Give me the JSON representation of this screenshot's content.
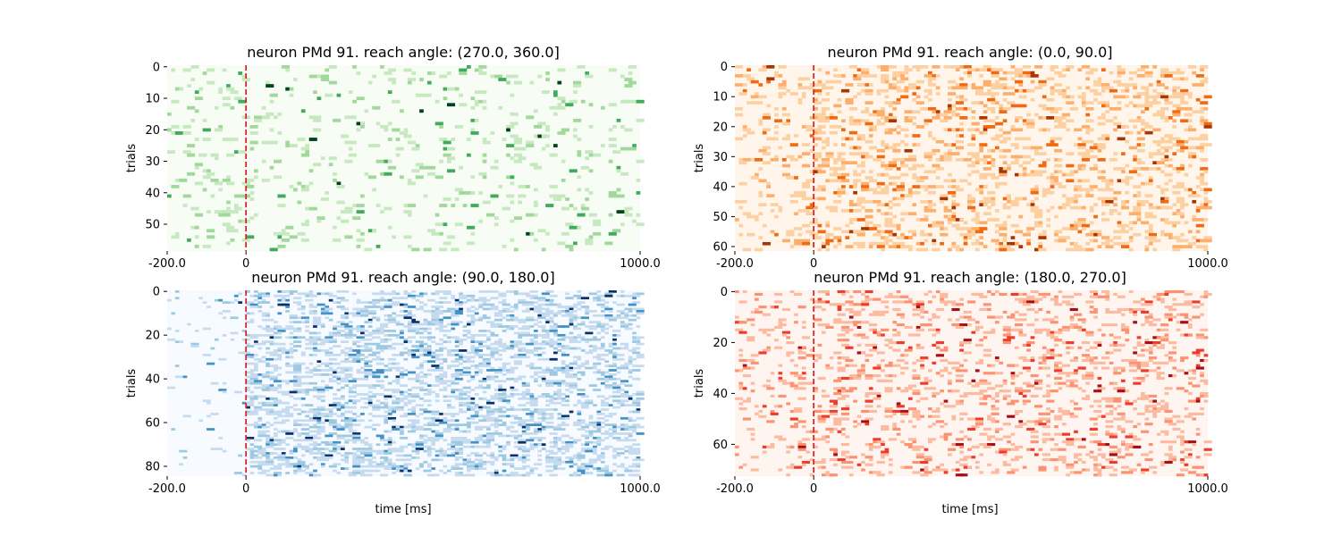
{
  "chart_data": [
    {
      "type": "heatmap",
      "title": "neuron PMd 91. reach angle: (270.0, 360.0]",
      "xlabel": "",
      "ylabel": "trials",
      "colormap": "Greens",
      "xlim": [
        -200.0,
        1000.0
      ],
      "xticks": [
        {
          "value": -200.0,
          "label": "-200.0"
        },
        {
          "value": 0,
          "label": "0"
        },
        {
          "value": 1000.0,
          "label": "1000.0"
        }
      ],
      "trials": 59,
      "yticks": [
        0,
        10,
        20,
        30,
        40,
        50
      ],
      "event_line_x": 0,
      "event_line_color": "#d62728",
      "time_bin_ms": 10,
      "baseline_density": 0.09,
      "post_density": 0.09,
      "seed": 11
    },
    {
      "type": "heatmap",
      "title": "neuron PMd 91. reach angle: (0.0, 90.0]",
      "xlabel": "",
      "ylabel": "trials",
      "colormap": "Oranges",
      "xlim": [
        -200.0,
        1000.0
      ],
      "xticks": [
        {
          "value": -200.0,
          "label": "-200.0"
        },
        {
          "value": 0,
          "label": "0"
        },
        {
          "value": 1000.0,
          "label": "1000.0"
        }
      ],
      "trials": 62,
      "yticks": [
        0,
        10,
        20,
        30,
        40,
        50,
        60
      ],
      "event_line_x": 0,
      "event_line_color": "#d62728",
      "time_bin_ms": 10,
      "baseline_density": 0.12,
      "post_density": 0.24,
      "seed": 23
    },
    {
      "type": "heatmap",
      "title": "neuron PMd 91. reach angle: (90.0, 180.0]",
      "xlabel": "time [ms]",
      "ylabel": "trials",
      "colormap": "Blues",
      "xlim": [
        -200.0,
        1000.0
      ],
      "xticks": [
        {
          "value": -200.0,
          "label": "-200.0"
        },
        {
          "value": 0,
          "label": "0"
        },
        {
          "value": 1000.0,
          "label": "1000.0"
        }
      ],
      "trials": 85,
      "yticks": [
        0,
        20,
        40,
        60,
        80
      ],
      "event_line_x": 0,
      "event_line_color": "#d62728",
      "time_bin_ms": 10,
      "baseline_density": 0.05,
      "post_density": 0.33,
      "seed": 37
    },
    {
      "type": "heatmap",
      "title": "neuron PMd 91. reach angle: (180.0, 270.0]",
      "xlabel": "time [ms]",
      "ylabel": "trials",
      "colormap": "Reds",
      "xlim": [
        -200.0,
        1000.0
      ],
      "xticks": [
        {
          "value": -200.0,
          "label": "-200.0"
        },
        {
          "value": 0,
          "label": "0"
        },
        {
          "value": 1000.0,
          "label": "1000.0"
        }
      ],
      "trials": 73,
      "yticks": [
        0,
        20,
        40,
        60
      ],
      "event_line_x": 0,
      "event_line_color": "#d62728",
      "time_bin_ms": 10,
      "baseline_density": 0.11,
      "post_density": 0.18,
      "seed": 53
    }
  ]
}
